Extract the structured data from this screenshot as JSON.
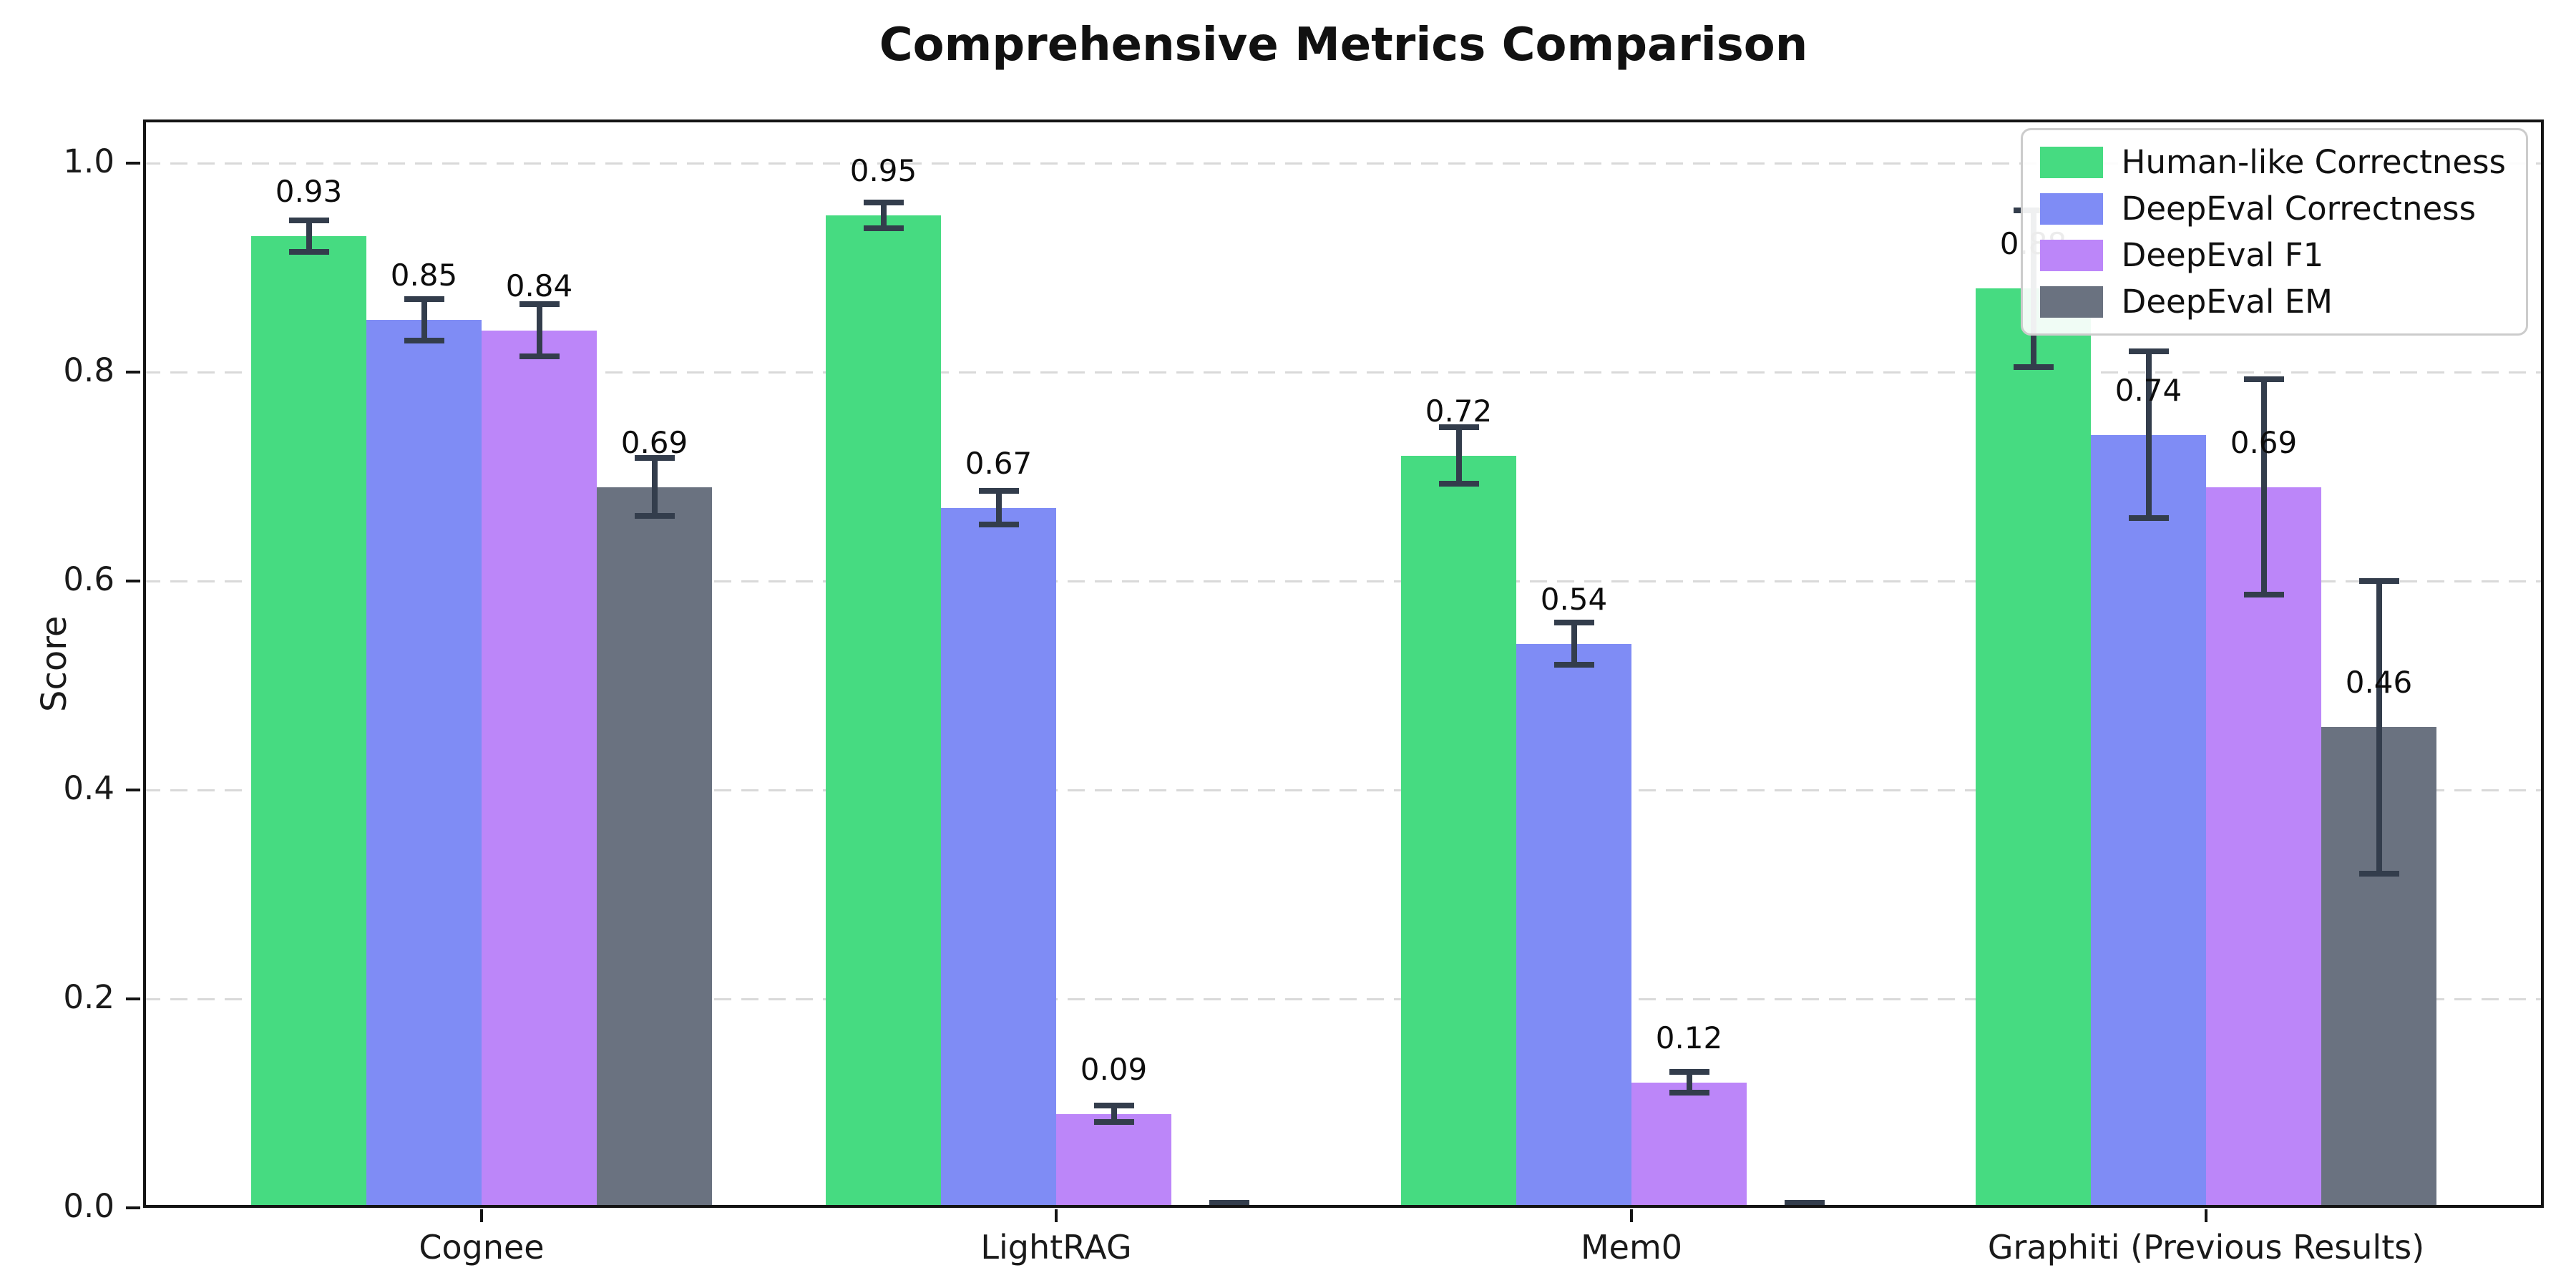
{
  "figure": {
    "title": "Comprehensive Metrics Comparison"
  },
  "chart_data": {
    "type": "bar",
    "title": "Comprehensive Metrics Comparison",
    "ylabel": "Score",
    "xlabel": "",
    "categories": [
      "Cognee",
      "LightRAG",
      "Mem0",
      "Graphiti (Previous Results)"
    ],
    "series": [
      {
        "name": "Human-like Correctness",
        "color": "#46db81",
        "values": [
          0.93,
          0.95,
          0.72,
          0.88
        ],
        "errors": [
          0.015,
          0.012,
          0.027,
          0.075
        ],
        "bar_labels": [
          "0.93",
          "0.95",
          "0.72",
          "0.88"
        ]
      },
      {
        "name": "DeepEval Correctness",
        "color": "#7f8cf5",
        "values": [
          0.85,
          0.67,
          0.54,
          0.74
        ],
        "errors": [
          0.02,
          0.016,
          0.02,
          0.08
        ],
        "bar_labels": [
          "0.85",
          "0.67",
          "0.54",
          "0.74"
        ]
      },
      {
        "name": "DeepEval F1",
        "color": "#bc86f9",
        "values": [
          0.84,
          0.09,
          0.12,
          0.69
        ],
        "errors": [
          0.025,
          0.008,
          0.01,
          0.103
        ],
        "bar_labels": [
          "0.84",
          "0.09",
          "0.12",
          "0.69"
        ]
      },
      {
        "name": "DeepEval EM",
        "color": "#6a7280",
        "values": [
          0.69,
          0.0,
          0.0,
          0.46
        ],
        "errors": [
          0.028,
          0.005,
          0.005,
          0.14
        ],
        "bar_labels": [
          "0.69",
          "",
          "",
          "0.46"
        ]
      }
    ],
    "yticks": [
      "0.0",
      "0.2",
      "0.4",
      "0.6",
      "0.8",
      "1.0"
    ],
    "ylim": [
      0.0,
      1.042
    ],
    "grid": "horizontal dashed",
    "legend_position": "upper right",
    "error_bars": true
  },
  "colors": {
    "error_bar": "#333d4c",
    "grid": "#d9d9d9",
    "axis": "#141414",
    "legend_border": "#cccccc",
    "background": "#ffffff"
  }
}
